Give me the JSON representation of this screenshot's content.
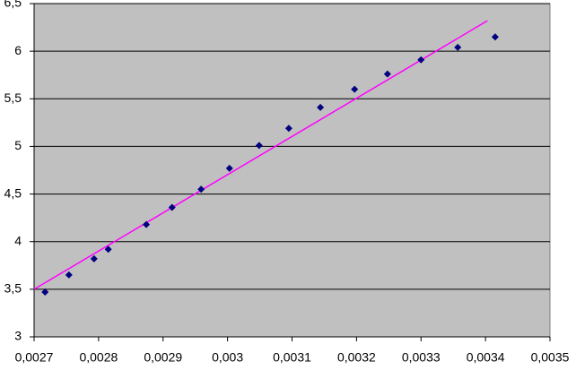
{
  "chart_data": {
    "type": "scatter",
    "series": [
      {
        "color": "#000080",
        "x": [
          0.002717,
          0.002754,
          0.002793,
          0.002815,
          0.002874,
          0.002914,
          0.002959,
          0.003003,
          0.003049,
          0.003095,
          0.003144,
          0.003197,
          0.003248,
          0.0033,
          0.003357,
          0.003415
        ],
        "y": [
          3.47,
          3.65,
          3.82,
          3.92,
          4.18,
          4.36,
          4.55,
          4.77,
          5.01,
          5.19,
          5.41,
          5.6,
          5.76,
          5.91,
          6.04,
          6.15
        ]
      }
    ],
    "trendline": {
      "color": "#ff00ff",
      "x": [
        0.0027,
        0.003403
      ],
      "y": [
        3.5,
        6.32
      ]
    },
    "xlim": [
      0.0027,
      0.0035
    ],
    "xticks": [
      {
        "value": 0.0027,
        "label": "0,0027"
      },
      {
        "value": 0.0028,
        "label": "0,0028"
      },
      {
        "value": 0.0029,
        "label": "0,0029"
      },
      {
        "value": 0.003,
        "label": "0,003"
      },
      {
        "value": 0.0031,
        "label": "0,0031"
      },
      {
        "value": 0.0032,
        "label": "0,0032"
      },
      {
        "value": 0.0033,
        "label": "0,0033"
      },
      {
        "value": 0.0034,
        "label": "0,0034"
      },
      {
        "value": 0.0035,
        "label": "0,0035"
      }
    ],
    "ylim": [
      3,
      6.5
    ],
    "yticks": [
      3,
      {
        "value": 3.5,
        "label": "3,5"
      },
      4,
      {
        "value": 4.5,
        "label": "4,5"
      },
      5,
      {
        "value": 5.5,
        "label": "5,5"
      },
      6,
      {
        "value": 6.5,
        "label": "6,5"
      }
    ],
    "grid": true,
    "plot_background": "#c0c0c0"
  }
}
